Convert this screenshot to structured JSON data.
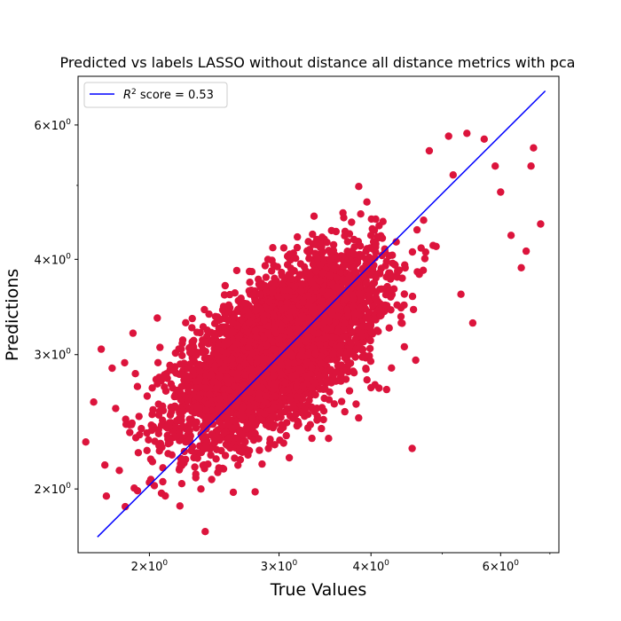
{
  "chart_data": {
    "type": "scatter",
    "title": "Predicted vs labels LASSO without distance all distance metrics with pca",
    "xlabel": "True Values",
    "ylabel": "Predictions",
    "xscale": "log",
    "yscale": "log",
    "xlim": [
      1.6,
      7.2
    ],
    "ylim": [
      1.65,
      6.95
    ],
    "grid": false,
    "x_ticks": [
      {
        "value": 2,
        "label_base": "2×10",
        "label_exp": "0"
      },
      {
        "value": 3,
        "label_base": "3×10",
        "label_exp": "0"
      },
      {
        "value": 4,
        "label_base": "4×10",
        "label_exp": "0"
      },
      {
        "value": 6,
        "label_base": "6×10",
        "label_exp": "0"
      }
    ],
    "y_ticks": [
      {
        "value": 2,
        "label_base": "2×10",
        "label_exp": "0"
      },
      {
        "value": 3,
        "label_base": "3×10",
        "label_exp": "0"
      },
      {
        "value": 4,
        "label_base": "4×10",
        "label_exp": "0"
      },
      {
        "value": 6,
        "label_base": "6×10",
        "label_exp": "0"
      }
    ],
    "x_minor_ticks": [
      5,
      7
    ],
    "y_minor_ticks": [
      5
    ],
    "legend": {
      "placement": "upper-left",
      "entries": [
        {
          "label_prefix": "R",
          "label_sup": "2",
          "label_suffix": " score = 0.53",
          "color": "#0000ff"
        }
      ]
    },
    "series": [
      {
        "kind": "scatter",
        "color": "#dc143c",
        "approx_points": 5000,
        "center_log": [
          1.1,
          1.12
        ],
        "spread_log": [
          0.15,
          0.12
        ]
      },
      {
        "kind": "line",
        "color": "#0000ff",
        "x": [
          1.7,
          6.9
        ],
        "y": [
          1.73,
          6.65
        ]
      }
    ],
    "outliers": [
      {
        "x": 1.68,
        "y": 2.6
      },
      {
        "x": 1.72,
        "y": 3.05
      },
      {
        "x": 1.74,
        "y": 2.15
      },
      {
        "x": 1.78,
        "y": 2.88
      },
      {
        "x": 1.8,
        "y": 2.55
      },
      {
        "x": 1.9,
        "y": 3.2
      },
      {
        "x": 1.95,
        "y": 2.4
      },
      {
        "x": 2.0,
        "y": 2.04
      },
      {
        "x": 2.05,
        "y": 3.35
      },
      {
        "x": 2.2,
        "y": 1.9
      },
      {
        "x": 2.35,
        "y": 2.0
      },
      {
        "x": 2.6,
        "y": 1.98
      },
      {
        "x": 3.95,
        "y": 2.78
      },
      {
        "x": 4.2,
        "y": 2.7
      },
      {
        "x": 4.55,
        "y": 2.26
      },
      {
        "x": 4.6,
        "y": 2.95
      },
      {
        "x": 5.3,
        "y": 3.6
      },
      {
        "x": 5.5,
        "y": 3.3
      },
      {
        "x": 6.0,
        "y": 4.9
      },
      {
        "x": 6.2,
        "y": 4.3
      },
      {
        "x": 6.4,
        "y": 3.9
      },
      {
        "x": 6.5,
        "y": 4.1
      },
      {
        "x": 6.6,
        "y": 5.3
      },
      {
        "x": 6.65,
        "y": 5.6
      },
      {
        "x": 6.8,
        "y": 4.45
      },
      {
        "x": 5.1,
        "y": 5.8
      },
      {
        "x": 5.4,
        "y": 5.85
      },
      {
        "x": 5.7,
        "y": 5.75
      },
      {
        "x": 4.8,
        "y": 5.55
      },
      {
        "x": 5.9,
        "y": 5.3
      }
    ]
  }
}
